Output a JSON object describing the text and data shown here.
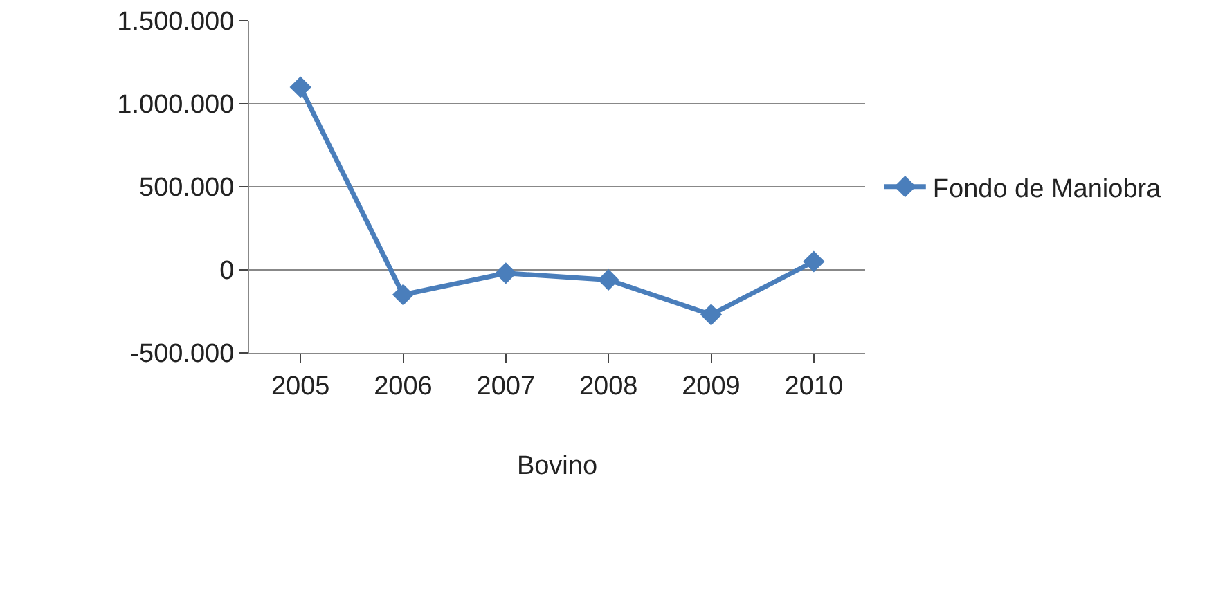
{
  "chart_data": {
    "type": "line",
    "xlabel": "Bovino",
    "categories": [
      "2005",
      "2006",
      "2007",
      "2008",
      "2009",
      "2010"
    ],
    "series": [
      {
        "name": "Fondo de Maniobra",
        "color": "#4a7ebb",
        "values": [
          1100000,
          -150000,
          -20000,
          -60000,
          -270000,
          50000
        ]
      }
    ],
    "ylim": [
      -500000,
      1500000
    ],
    "yticks": [
      {
        "value": -500000,
        "label": "-500.000"
      },
      {
        "value": 0,
        "label": "0"
      },
      {
        "value": 500000,
        "label": "500.000"
      },
      {
        "value": 1000000,
        "label": "1.000.000"
      },
      {
        "value": 1500000,
        "label": "1.500.000"
      }
    ],
    "grid": "y",
    "legend": "right",
    "marker": "diamond",
    "line_style": "solid"
  }
}
